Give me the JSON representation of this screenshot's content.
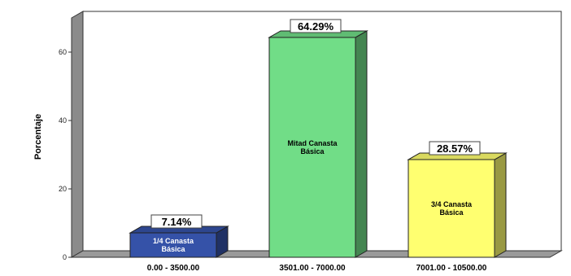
{
  "chart_data": {
    "type": "bar",
    "ylabel": "Porcentaje",
    "xlabel": "",
    "ylim": [
      0,
      70
    ],
    "yticks": [
      0,
      20,
      40,
      60
    ],
    "categories": [
      "0.00 - 3500.00",
      "3501.00 - 7000.00",
      "7001.00 - 10500.00"
    ],
    "values": [
      7.14,
      64.29,
      28.57
    ],
    "value_labels": [
      "7.14%",
      "64.29%",
      "28.57%"
    ],
    "bar_labels": [
      [
        "1/4 Canasta",
        "Básica"
      ],
      [
        "Mitad Canasta",
        "Básica"
      ],
      [
        "3/4 Canasta",
        "Básica"
      ]
    ],
    "colors": [
      "#3552a8",
      "#71dd87",
      "#ffff70"
    ],
    "bar_text_colors": [
      "#ffffff",
      "#000000",
      "#000000"
    ],
    "grid": false,
    "style": "3d",
    "legend": "none"
  }
}
